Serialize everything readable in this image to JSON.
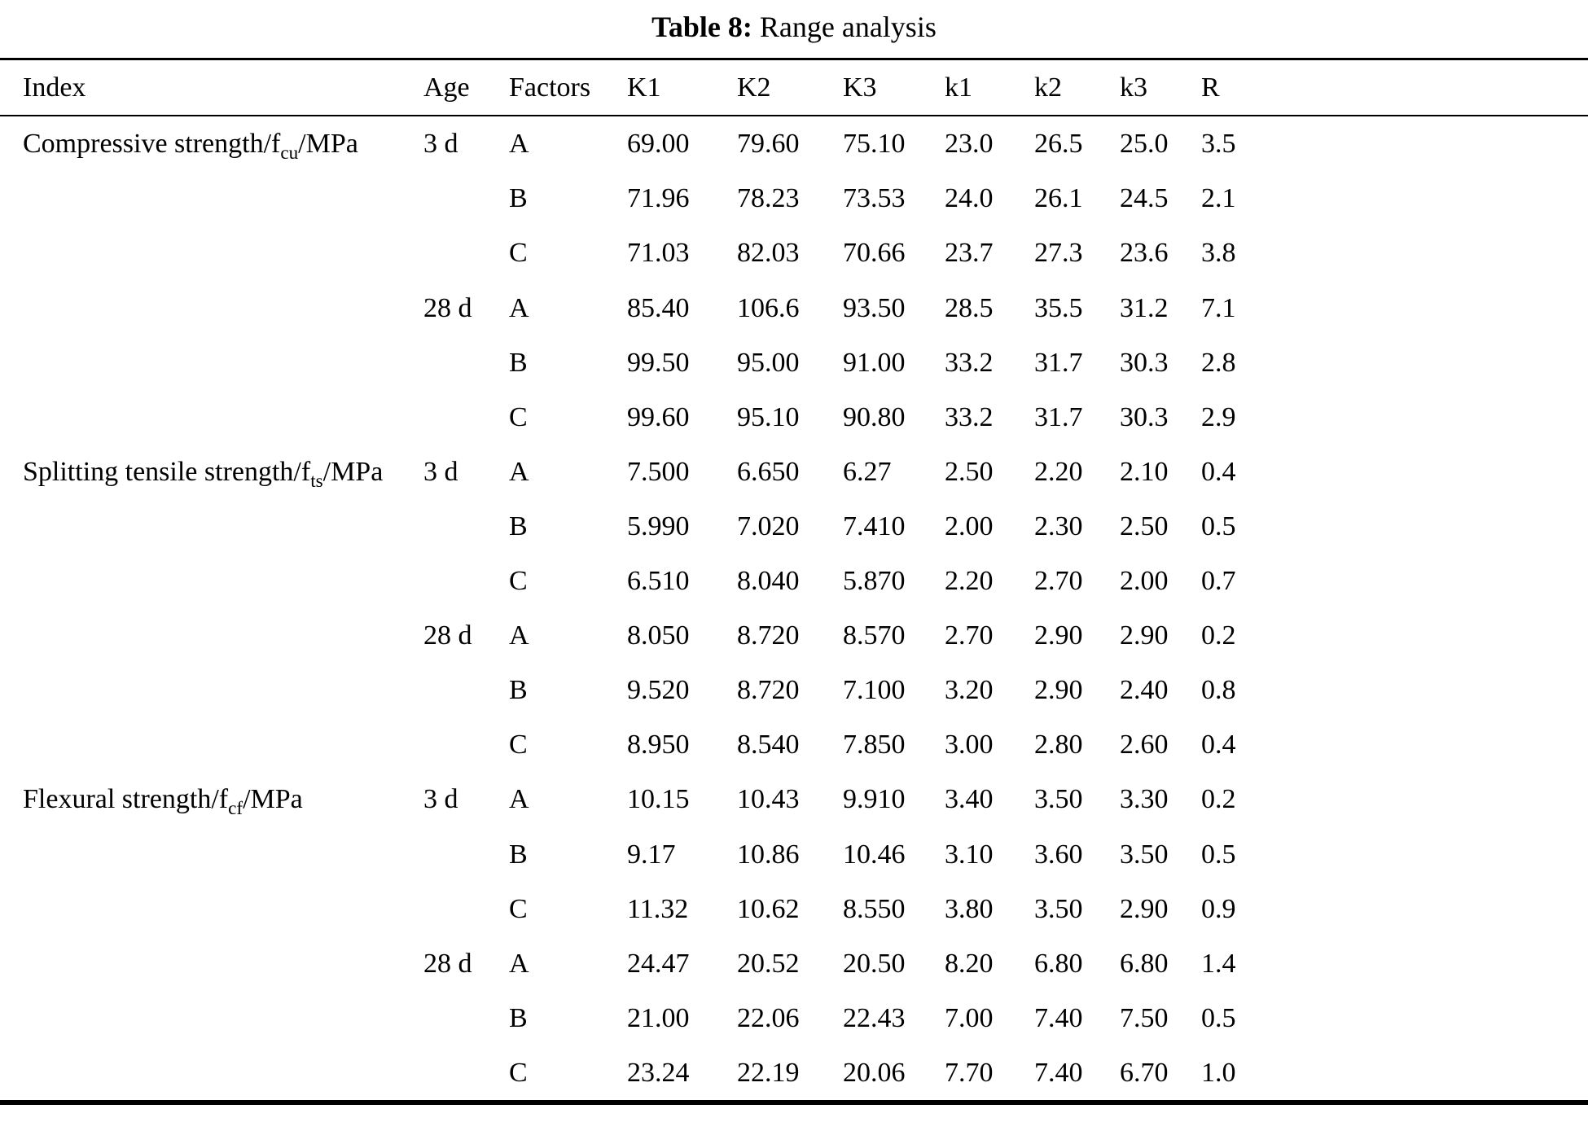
{
  "caption": {
    "label": "Table 8:",
    "text": "Range analysis"
  },
  "table": {
    "columns": [
      "Index",
      "Age",
      "Factors",
      "K1",
      "K2",
      "K3",
      "k1",
      "k2",
      "k3",
      "R"
    ],
    "rows": [
      {
        "index_pre": "Compressive strength/f",
        "index_sub": "cu",
        "index_post": "/MPa",
        "age": "3 d",
        "factor": "A",
        "values": [
          "69.00",
          "79.60",
          "75.10",
          "23.0",
          "26.5",
          "25.0",
          "3.5"
        ]
      },
      {
        "index_pre": "",
        "index_sub": "",
        "index_post": "",
        "age": "",
        "factor": "B",
        "values": [
          "71.96",
          "78.23",
          "73.53",
          "24.0",
          "26.1",
          "24.5",
          "2.1"
        ]
      },
      {
        "index_pre": "",
        "index_sub": "",
        "index_post": "",
        "age": "",
        "factor": "C",
        "values": [
          "71.03",
          "82.03",
          "70.66",
          "23.7",
          "27.3",
          "23.6",
          "3.8"
        ]
      },
      {
        "index_pre": "",
        "index_sub": "",
        "index_post": "",
        "age": "28 d",
        "factor": "A",
        "values": [
          "85.40",
          "106.6",
          "93.50",
          "28.5",
          "35.5",
          "31.2",
          "7.1"
        ]
      },
      {
        "index_pre": "",
        "index_sub": "",
        "index_post": "",
        "age": "",
        "factor": "B",
        "values": [
          "99.50",
          "95.00",
          "91.00",
          "33.2",
          "31.7",
          "30.3",
          "2.8"
        ]
      },
      {
        "index_pre": "",
        "index_sub": "",
        "index_post": "",
        "age": "",
        "factor": "C",
        "values": [
          "99.60",
          "95.10",
          "90.80",
          "33.2",
          "31.7",
          "30.3",
          "2.9"
        ]
      },
      {
        "index_pre": "Splitting tensile strength/f",
        "index_sub": "ts",
        "index_post": "/MPa",
        "age": "3 d",
        "factor": "A",
        "values": [
          "7.500",
          "6.650",
          "6.27",
          "2.50",
          "2.20",
          "2.10",
          "0.4"
        ]
      },
      {
        "index_pre": "",
        "index_sub": "",
        "index_post": "",
        "age": "",
        "factor": "B",
        "values": [
          "5.990",
          "7.020",
          "7.410",
          "2.00",
          "2.30",
          "2.50",
          "0.5"
        ]
      },
      {
        "index_pre": "",
        "index_sub": "",
        "index_post": "",
        "age": "",
        "factor": "C",
        "values": [
          "6.510",
          "8.040",
          "5.870",
          "2.20",
          "2.70",
          "2.00",
          "0.7"
        ]
      },
      {
        "index_pre": "",
        "index_sub": "",
        "index_post": "",
        "age": "28 d",
        "factor": "A",
        "values": [
          "8.050",
          "8.720",
          "8.570",
          "2.70",
          "2.90",
          "2.90",
          "0.2"
        ]
      },
      {
        "index_pre": "",
        "index_sub": "",
        "index_post": "",
        "age": "",
        "factor": "B",
        "values": [
          "9.520",
          "8.720",
          "7.100",
          "3.20",
          "2.90",
          "2.40",
          "0.8"
        ]
      },
      {
        "index_pre": "",
        "index_sub": "",
        "index_post": "",
        "age": "",
        "factor": "C",
        "values": [
          "8.950",
          "8.540",
          "7.850",
          "3.00",
          "2.80",
          "2.60",
          "0.4"
        ]
      },
      {
        "index_pre": "Flexural strength/f",
        "index_sub": "cf",
        "index_post": "/MPa",
        "age": "3 d",
        "factor": "A",
        "values": [
          "10.15",
          "10.43",
          "9.910",
          "3.40",
          "3.50",
          "3.30",
          "0.2"
        ]
      },
      {
        "index_pre": "",
        "index_sub": "",
        "index_post": "",
        "age": "",
        "factor": "B",
        "values": [
          "9.17",
          "10.86",
          "10.46",
          "3.10",
          "3.60",
          "3.50",
          "0.5"
        ]
      },
      {
        "index_pre": "",
        "index_sub": "",
        "index_post": "",
        "age": "",
        "factor": "C",
        "values": [
          "11.32",
          "10.62",
          "8.550",
          "3.80",
          "3.50",
          "2.90",
          "0.9"
        ]
      },
      {
        "index_pre": "",
        "index_sub": "",
        "index_post": "",
        "age": "28 d",
        "factor": "A",
        "values": [
          "24.47",
          "20.52",
          "20.50",
          "8.20",
          "6.80",
          "6.80",
          "1.4"
        ]
      },
      {
        "index_pre": "",
        "index_sub": "",
        "index_post": "",
        "age": "",
        "factor": "B",
        "values": [
          "21.00",
          "22.06",
          "22.43",
          "7.00",
          "7.40",
          "7.50",
          "0.5"
        ]
      },
      {
        "index_pre": "",
        "index_sub": "",
        "index_post": "",
        "age": "",
        "factor": "C",
        "values": [
          "23.24",
          "22.19",
          "20.06",
          "7.70",
          "7.40",
          "6.70",
          "1.0"
        ]
      }
    ]
  }
}
